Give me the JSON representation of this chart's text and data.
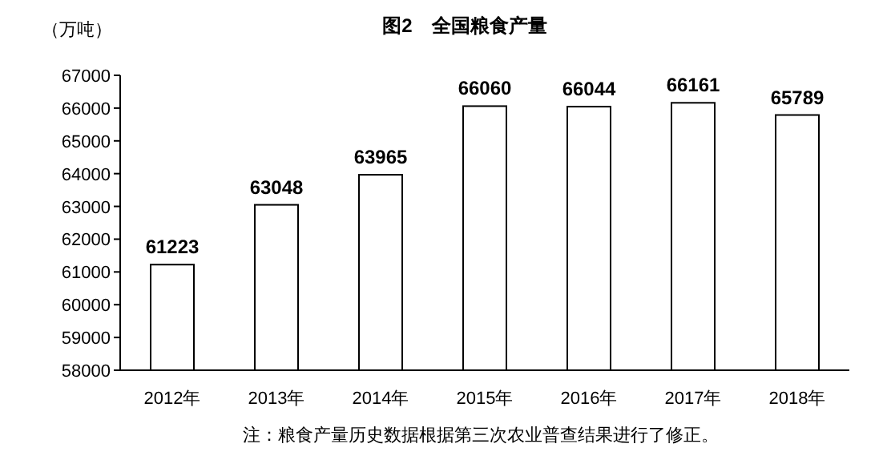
{
  "chart_data": {
    "type": "bar",
    "title": "图2　全国粮食产量",
    "ylabel": "（万吨）",
    "categories": [
      "2012年",
      "2013年",
      "2014年",
      "2015年",
      "2016年",
      "2017年",
      "2018年"
    ],
    "values": [
      61223,
      63048,
      63965,
      66060,
      66044,
      66161,
      65789
    ],
    "color": "#ffffff",
    "ylim": [
      58000,
      67000
    ],
    "yticks": [
      58000,
      59000,
      60000,
      61000,
      62000,
      63000,
      64000,
      65000,
      66000,
      67000
    ],
    "data_labels": true,
    "annotations": [
      "注：粮食产量历史数据根据第三次农业普查结果进行了修正。"
    ]
  }
}
